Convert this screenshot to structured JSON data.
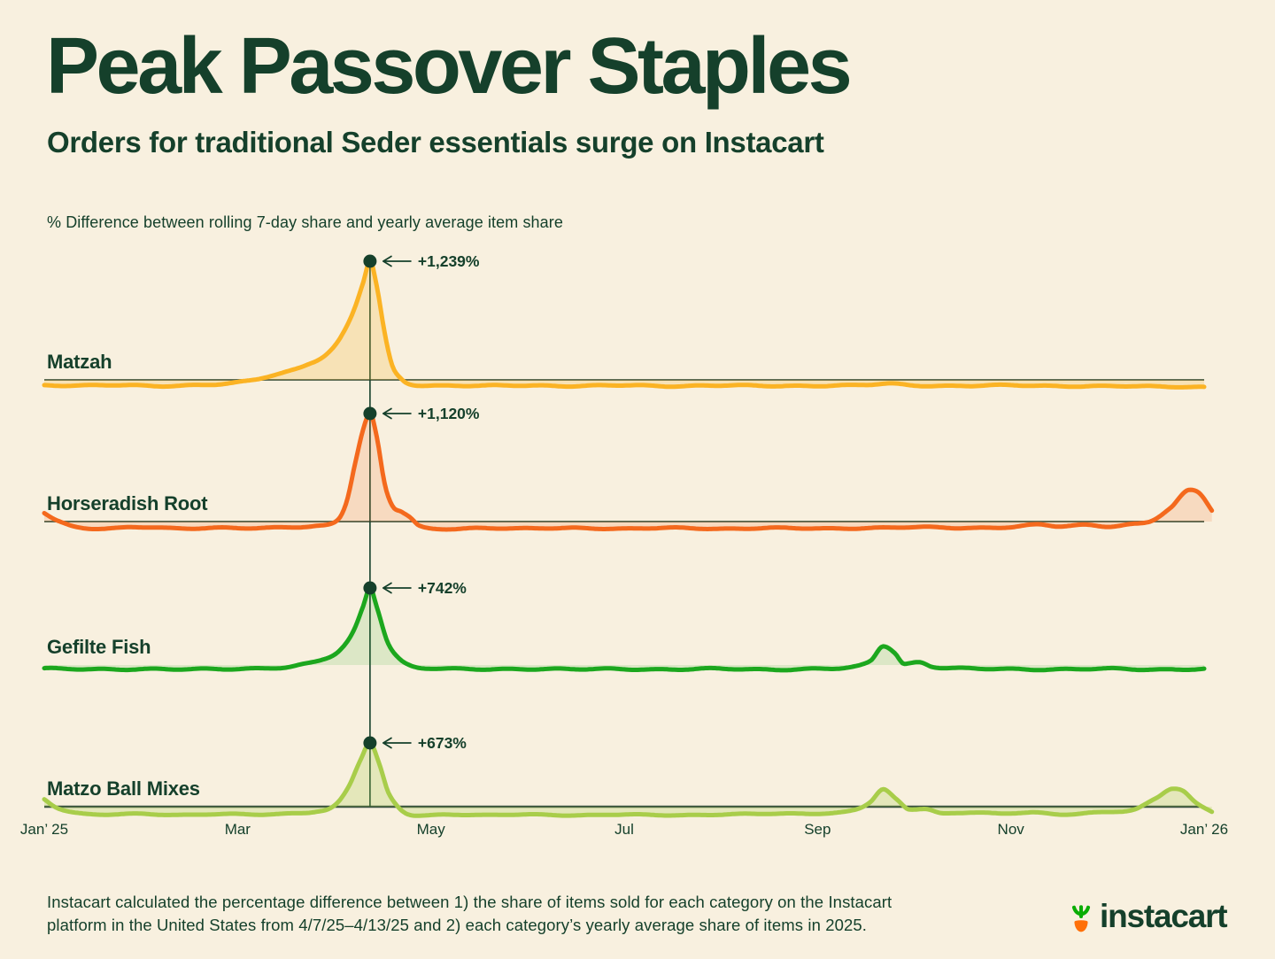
{
  "page": {
    "bg": "#F8F0DF",
    "ink": "#15402B"
  },
  "header": {
    "title": "Peak Passover Staples",
    "subtitle": "Orders for traditional Seder essentials surge on Instacart",
    "axis_note": "% Difference between rolling 7-day share and yearly average item share"
  },
  "footer": {
    "note": "Instacart calculated the percentage difference between 1) the share of items sold for each category on the Instacart platform in the United States from 4/7/25–4/13/25 and 2) each category’s yearly average share of items in 2025.",
    "logo_text": "instacart",
    "logo_carrot_orange": "#FF7009",
    "logo_leaf_green": "#0AAD05"
  },
  "chart_data": {
    "type": "line",
    "title": "Peak Passover Staples",
    "subtitle": "Orders for traditional Seder essentials surge on Instacart",
    "ylabel": "% Difference between rolling 7-day share and yearly average item share",
    "peak_week": "4/7/25–4/13/25",
    "peak_month": 3.37,
    "x_axis": {
      "unit": "months since Jan 2025",
      "range": [
        0,
        12
      ],
      "tick_labels": [
        {
          "label": "Jan’ 25",
          "month": 0
        },
        {
          "label": "Mar",
          "month": 2
        },
        {
          "label": "May",
          "month": 4
        },
        {
          "label": "Jul",
          "month": 6
        },
        {
          "label": "Sep",
          "month": 8
        },
        {
          "label": "Nov",
          "month": 10
        },
        {
          "label": "Jan’ 26",
          "month": 12
        }
      ]
    },
    "grid": false,
    "legend": "labels at left of each ridgeline",
    "series": [
      {
        "name": "Matzah",
        "peak_label": "+1,239%",
        "peak_value": 1239,
        "color": "#FBB324",
        "fill": "rgba(248,179,36,0.22)",
        "points": [
          [
            0,
            -55
          ],
          [
            0.4,
            -62
          ],
          [
            0.8,
            -55
          ],
          [
            1.2,
            -62
          ],
          [
            1.6,
            -55
          ],
          [
            1.9,
            -42
          ],
          [
            2.1,
            -15
          ],
          [
            2.3,
            35
          ],
          [
            2.5,
            85
          ],
          [
            2.7,
            150
          ],
          [
            2.9,
            250
          ],
          [
            3.05,
            420
          ],
          [
            3.2,
            720
          ],
          [
            3.3,
            1020
          ],
          [
            3.37,
            1239
          ],
          [
            3.44,
            980
          ],
          [
            3.52,
            500
          ],
          [
            3.6,
            150
          ],
          [
            3.7,
            5
          ],
          [
            3.8,
            -45
          ],
          [
            4,
            -58
          ],
          [
            4.5,
            -63
          ],
          [
            5,
            -57
          ],
          [
            5.5,
            -64
          ],
          [
            6,
            -58
          ],
          [
            6.5,
            -64
          ],
          [
            7,
            -58
          ],
          [
            7.5,
            -64
          ],
          [
            8,
            -60
          ],
          [
            8.5,
            -54
          ],
          [
            8.72,
            -42
          ],
          [
            9,
            -57
          ],
          [
            9.5,
            -62
          ],
          [
            10,
            -58
          ],
          [
            10.5,
            -64
          ],
          [
            11,
            -66
          ],
          [
            11.5,
            -70
          ],
          [
            12,
            -74
          ]
        ]
      },
      {
        "name": "Horseradish Root",
        "peak_label": "+1,120%",
        "peak_value": 1120,
        "color": "#F4691D",
        "fill": "rgba(244,105,29,0.16)",
        "points": [
          [
            0,
            90
          ],
          [
            0.12,
            20
          ],
          [
            0.3,
            -50
          ],
          [
            0.6,
            -72
          ],
          [
            1,
            -60
          ],
          [
            1.4,
            -72
          ],
          [
            1.8,
            -62
          ],
          [
            2.2,
            -70
          ],
          [
            2.5,
            -62
          ],
          [
            2.8,
            -48
          ],
          [
            3,
            -5
          ],
          [
            3.12,
            180
          ],
          [
            3.22,
            620
          ],
          [
            3.3,
            960
          ],
          [
            3.37,
            1120
          ],
          [
            3.44,
            880
          ],
          [
            3.52,
            400
          ],
          [
            3.6,
            165
          ],
          [
            3.7,
            100
          ],
          [
            3.78,
            45
          ],
          [
            3.88,
            -50
          ],
          [
            4.1,
            -78
          ],
          [
            4.5,
            -66
          ],
          [
            5,
            -74
          ],
          [
            5.5,
            -66
          ],
          [
            6,
            -74
          ],
          [
            6.5,
            -67
          ],
          [
            7,
            -74
          ],
          [
            7.5,
            -67
          ],
          [
            8,
            -73
          ],
          [
            8.5,
            -66
          ],
          [
            9,
            -60
          ],
          [
            9.5,
            -66
          ],
          [
            10,
            -55
          ],
          [
            10.3,
            -35
          ],
          [
            10.5,
            -52
          ],
          [
            10.8,
            -36
          ],
          [
            11,
            -47
          ],
          [
            11.2,
            -32
          ],
          [
            11.45,
            8
          ],
          [
            11.65,
            140
          ],
          [
            11.85,
            330
          ],
          [
            11.95,
            295
          ],
          [
            12.08,
            115
          ]
        ]
      },
      {
        "name": "Gefilte Fish",
        "peak_label": "+742%",
        "peak_value": 742,
        "color": "#1CA71E",
        "fill": "rgba(28,167,30,0.13)",
        "points": [
          [
            0,
            -36
          ],
          [
            0.5,
            -42
          ],
          [
            1,
            -37
          ],
          [
            1.5,
            -43
          ],
          [
            2,
            -36
          ],
          [
            2.3,
            -28
          ],
          [
            2.6,
            -10
          ],
          [
            2.85,
            42
          ],
          [
            3.05,
            135
          ],
          [
            3.2,
            330
          ],
          [
            3.3,
            570
          ],
          [
            3.37,
            742
          ],
          [
            3.44,
            560
          ],
          [
            3.55,
            225
          ],
          [
            3.68,
            55
          ],
          [
            3.8,
            -12
          ],
          [
            4,
            -33
          ],
          [
            4.5,
            -41
          ],
          [
            5,
            -36
          ],
          [
            5.5,
            -42
          ],
          [
            6,
            -38
          ],
          [
            6.5,
            -42
          ],
          [
            7,
            -38
          ],
          [
            7.5,
            -42
          ],
          [
            8,
            -38
          ],
          [
            8.35,
            -25
          ],
          [
            8.55,
            40
          ],
          [
            8.68,
            180
          ],
          [
            8.8,
            115
          ],
          [
            8.9,
            10
          ],
          [
            9.05,
            28
          ],
          [
            9.2,
            -15
          ],
          [
            9.5,
            -35
          ],
          [
            10,
            -38
          ],
          [
            10.5,
            -42
          ],
          [
            11,
            -38
          ],
          [
            11.5,
            -42
          ],
          [
            12,
            -38
          ]
        ]
      },
      {
        "name": "Matzo Ball Mixes",
        "peak_label": "+673%",
        "peak_value": 673,
        "color": "#A8CD4A",
        "fill": "rgba(168,205,74,0.25)",
        "points": [
          [
            0,
            80
          ],
          [
            0.1,
            15
          ],
          [
            0.28,
            -55
          ],
          [
            0.6,
            -85
          ],
          [
            1,
            -76
          ],
          [
            1.4,
            -86
          ],
          [
            1.8,
            -78
          ],
          [
            2.2,
            -84
          ],
          [
            2.5,
            -74
          ],
          [
            2.8,
            -48
          ],
          [
            3,
            5
          ],
          [
            3.15,
            215
          ],
          [
            3.27,
            490
          ],
          [
            3.37,
            673
          ],
          [
            3.46,
            470
          ],
          [
            3.56,
            150
          ],
          [
            3.68,
            -25
          ],
          [
            3.85,
            -92
          ],
          [
            4.2,
            -82
          ],
          [
            4.6,
            -90
          ],
          [
            5,
            -82
          ],
          [
            5.5,
            -90
          ],
          [
            6,
            -84
          ],
          [
            6.5,
            -90
          ],
          [
            7,
            -82
          ],
          [
            7.5,
            -76
          ],
          [
            8,
            -70
          ],
          [
            8.35,
            -42
          ],
          [
            8.55,
            55
          ],
          [
            8.68,
            185
          ],
          [
            8.82,
            70
          ],
          [
            8.95,
            -30
          ],
          [
            9.1,
            -18
          ],
          [
            9.3,
            -72
          ],
          [
            9.6,
            -56
          ],
          [
            9.9,
            -76
          ],
          [
            10.2,
            -62
          ],
          [
            10.5,
            -82
          ],
          [
            10.8,
            -64
          ],
          [
            11.05,
            -52
          ],
          [
            11.3,
            -28
          ],
          [
            11.5,
            85
          ],
          [
            11.68,
            190
          ],
          [
            11.78,
            168
          ],
          [
            11.92,
            35
          ],
          [
            12.08,
            -48
          ]
        ]
      }
    ]
  }
}
